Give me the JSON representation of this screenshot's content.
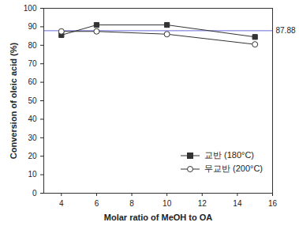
{
  "chart_data": {
    "type": "line",
    "x_label": "Molar ratio of MeOH to OA",
    "y_label": "Conversion of oleic acid (%)",
    "xlim": [
      3,
      16
    ],
    "xticks": [
      4,
      6,
      8,
      10,
      12,
      14,
      16
    ],
    "ylim": [
      0,
      100
    ],
    "yticks": [
      0,
      10,
      20,
      30,
      40,
      50,
      60,
      70,
      80,
      90,
      100
    ],
    "legend": "lower right",
    "series": [
      {
        "name": "교반 (180°C)",
        "color": "#333333",
        "marker": "square",
        "x": [
          4,
          6,
          10,
          15
        ],
        "values": [
          85.5,
          91,
          91,
          84.5
        ]
      },
      {
        "name": "무교반 (200°C)",
        "color": "#333333",
        "marker": "circle",
        "x": [
          4,
          6,
          10,
          15
        ],
        "values": [
          87.5,
          87.5,
          86,
          80.5
        ]
      }
    ],
    "reference_line": {
      "value": 87.88,
      "color": "#6a6ad8"
    }
  }
}
